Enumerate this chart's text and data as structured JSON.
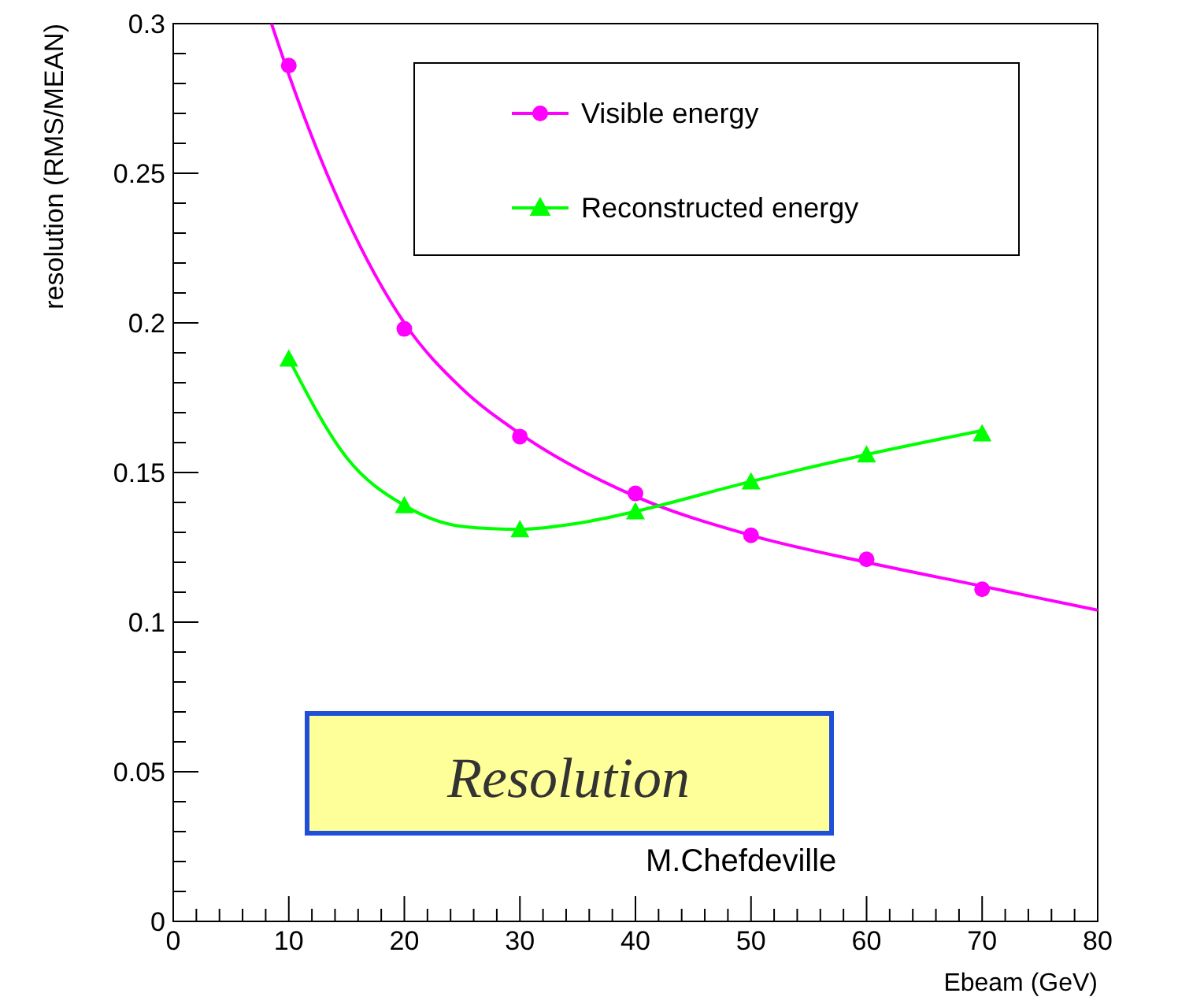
{
  "chart_data": {
    "type": "scatter",
    "xlabel": "Ebeam (GeV)",
    "ylabel": "resolution (RMS/MEAN)",
    "xlim": [
      0,
      80
    ],
    "xticks": [
      0,
      10,
      20,
      30,
      40,
      50,
      60,
      70,
      80
    ],
    "ylim": [
      0,
      0.3
    ],
    "yticks": [
      0,
      0.05,
      0.1,
      0.15,
      0.2,
      0.25,
      0.3
    ],
    "legend": "top right",
    "grid": false,
    "annotations": [
      "Resolution",
      "M.Chefdeville"
    ],
    "series": [
      {
        "name": "Visible energy",
        "color": "#ff00ff",
        "marker": "circle",
        "x": [
          10,
          20,
          30,
          40,
          50,
          60,
          70
        ],
        "values": [
          0.286,
          0.198,
          0.162,
          0.143,
          0.129,
          0.121,
          0.111
        ]
      },
      {
        "name": "Reconstructed energy",
        "color": "#00ff00",
        "marker": "triangle",
        "x": [
          10,
          20,
          30,
          40,
          50,
          60,
          70
        ],
        "values": [
          0.188,
          0.139,
          0.131,
          0.137,
          0.147,
          0.156,
          0.163
        ]
      },
      {
        "type": "line",
        "color": "#ff00ff",
        "x": [
          8.5,
          10,
          15,
          20,
          25,
          30,
          40,
          50,
          60,
          70,
          80
        ],
        "values": [
          0.3,
          0.283,
          0.235,
          0.2,
          0.178,
          0.163,
          0.142,
          0.129,
          0.12,
          0.112,
          0.104
        ]
      },
      {
        "type": "line",
        "color": "#00ff00",
        "x": [
          10,
          15,
          20,
          25,
          30,
          35,
          40,
          50,
          60,
          70
        ],
        "values": [
          0.188,
          0.155,
          0.139,
          0.132,
          0.131,
          0.133,
          0.137,
          0.147,
          0.156,
          0.164
        ]
      }
    ]
  }
}
